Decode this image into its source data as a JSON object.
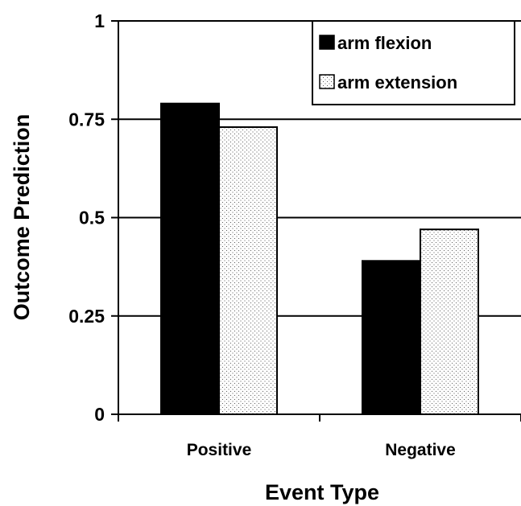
{
  "chart_data": {
    "type": "bar",
    "title": "",
    "xlabel": "Event Type",
    "ylabel": "Outcome Prediction",
    "categories": [
      "Positive",
      "Negative"
    ],
    "series": [
      {
        "name": "arm flexion",
        "values": [
          0.79,
          0.39
        ],
        "fill": "solid",
        "color": "#000000"
      },
      {
        "name": "arm extension",
        "values": [
          0.73,
          0.47
        ],
        "fill": "dotted",
        "color": "#ffffff"
      }
    ],
    "ylim": [
      0,
      1
    ],
    "yticks": [
      0,
      0.25,
      0.5,
      0.75,
      1
    ],
    "ytick_labels": [
      "0",
      "0.25",
      "0.5",
      "0.75",
      "1"
    ],
    "grid": "horizontal",
    "legend_position": "top-right"
  }
}
